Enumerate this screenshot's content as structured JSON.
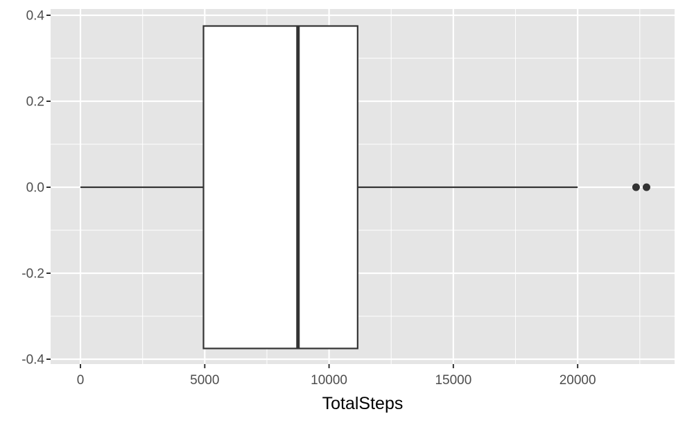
{
  "chart_data": {
    "type": "boxplot",
    "title": "",
    "xlabel": "TotalSteps",
    "ylabel": "",
    "xlim": [
      -1200,
      23900
    ],
    "ylim": [
      -0.4,
      0.4
    ],
    "x_ticks": [
      0,
      5000,
      10000,
      15000,
      20000
    ],
    "x_tick_labels": [
      "0",
      "5000",
      "10000",
      "15000",
      "20000"
    ],
    "y_ticks": [
      0.4,
      0.2,
      0.0,
      -0.2,
      -0.4
    ],
    "y_tick_labels": [
      "0.4",
      "0.2",
      "0.0",
      "-0.2",
      "-0.4"
    ],
    "grid": true,
    "orientation": "horizontal",
    "box": {
      "whisker_low": 0,
      "q1": 4950,
      "median": 8750,
      "q3": 11150,
      "whisker_high": 20000,
      "outliers": [
        22350,
        22770
      ],
      "y_center": 0.0,
      "y_extent": [
        -0.375,
        0.375
      ]
    },
    "colors": {
      "panel": "#e5e5e5",
      "grid": "#ffffff",
      "box_fill": "#ffffff",
      "box_line": "#333333",
      "tick_text": "#4d4d4d"
    }
  }
}
